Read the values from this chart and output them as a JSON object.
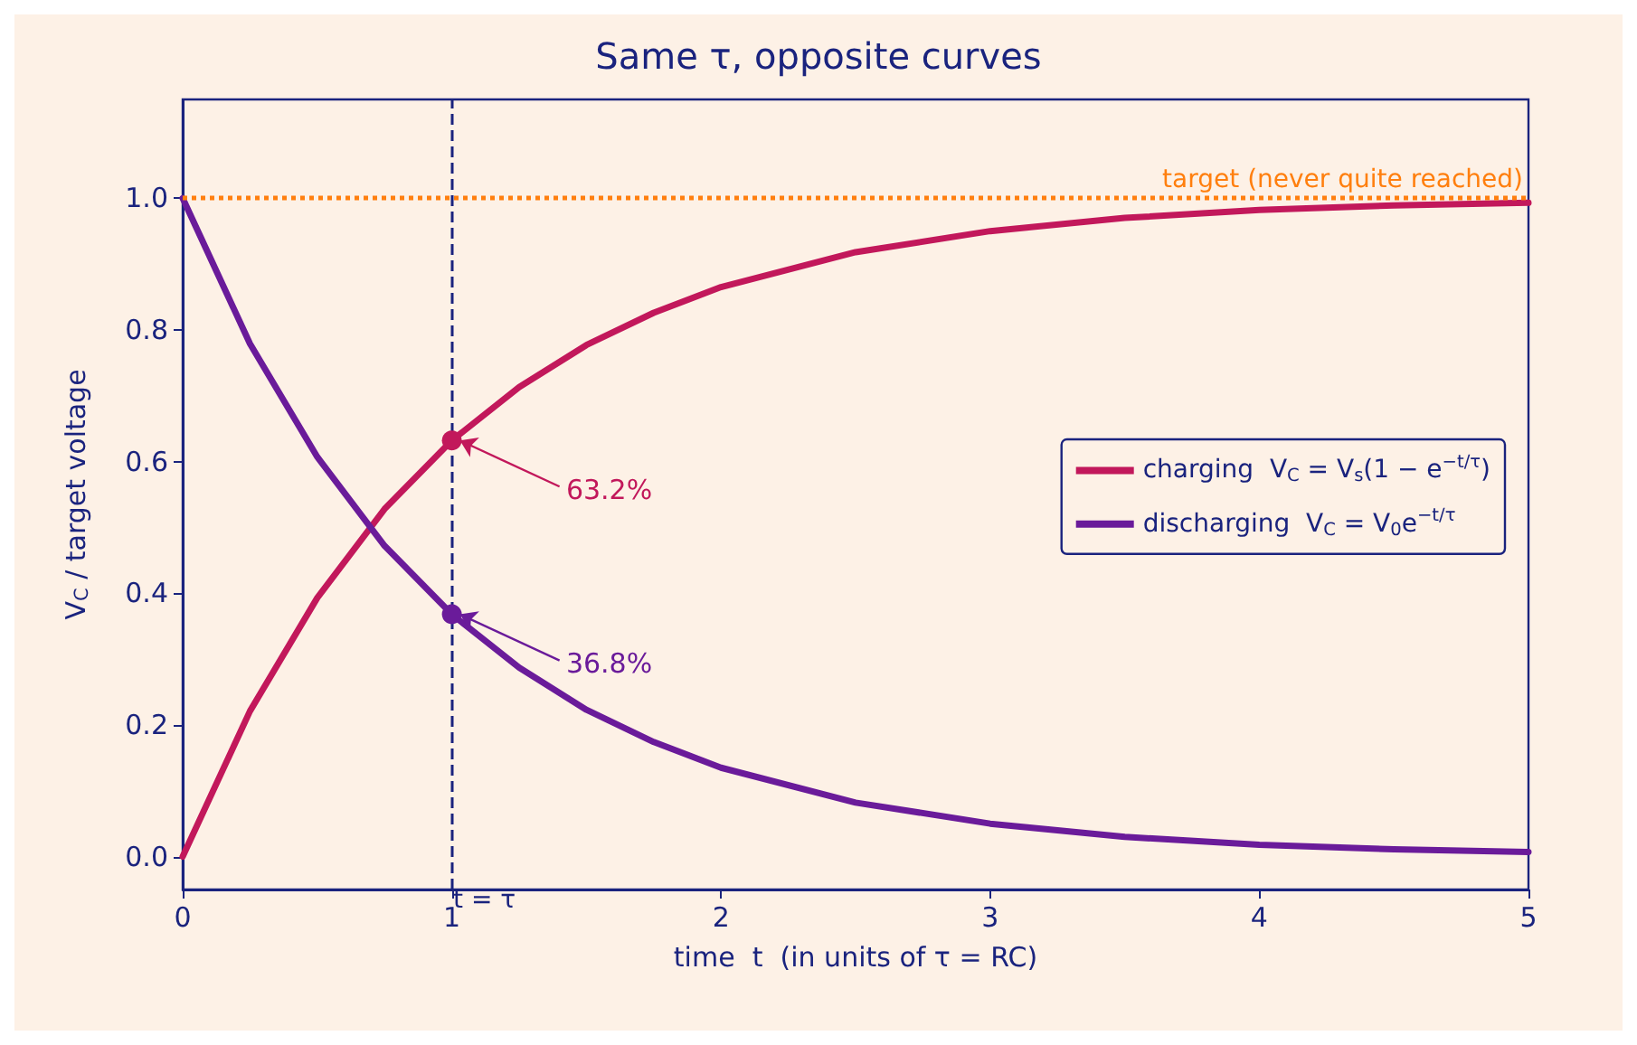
{
  "chart_data": {
    "type": "line",
    "title": "Same τ, opposite curves",
    "xlabel": "time  t  (in units of τ = RC)",
    "ylabel": "V$_{C}$ / target voltage",
    "x": [
      0,
      0.25,
      0.5,
      0.75,
      1,
      1.25,
      1.5,
      1.75,
      2,
      2.5,
      3,
      3.5,
      4,
      4.5,
      5
    ],
    "series": [
      {
        "name": "charging  V$_{C}$ = V$_{s}$(1 − e$^{−t/τ}$)",
        "color": "#c2185b",
        "values": [
          0,
          0.221,
          0.393,
          0.528,
          0.632,
          0.713,
          0.777,
          0.826,
          0.865,
          0.918,
          0.95,
          0.97,
          0.982,
          0.989,
          0.993
        ]
      },
      {
        "name": "discharging  V$_{C}$ = V$_{0}$e$^{−t/τ}$",
        "color": "#6a1b9a",
        "values": [
          1,
          0.779,
          0.607,
          0.472,
          0.368,
          0.287,
          0.223,
          0.174,
          0.135,
          0.082,
          0.05,
          0.03,
          0.018,
          0.011,
          0.007
        ]
      }
    ],
    "annotations": [
      {
        "text": "63.2%",
        "x": 1,
        "y": 0.632
      },
      {
        "text": "36.8%",
        "x": 1,
        "y": 0.368
      }
    ],
    "ref_lines": [
      {
        "axis": "y",
        "value": 1,
        "label": "target (never quite reached)",
        "color": "#ff7f0e",
        "line_style": "dotted"
      },
      {
        "axis": "x",
        "value": 1,
        "label": "t = τ",
        "color": "#1a237e",
        "line_style": "dashed"
      }
    ],
    "xlim": [
      0,
      5
    ],
    "xticks": [
      0,
      1,
      2,
      3,
      4,
      5
    ],
    "ylim": [
      -0.05,
      1.15
    ],
    "yticks": [
      {
        "value": 0,
        "label": "0.0"
      },
      {
        "value": 0.2,
        "label": "0.2"
      },
      {
        "value": 0.4,
        "label": "0.4"
      },
      {
        "value": 0.6,
        "label": "0.6"
      },
      {
        "value": 0.8,
        "label": "0.8"
      },
      {
        "value": 1,
        "label": "1.0"
      }
    ],
    "legend": "right",
    "grid": false,
    "marker": "none",
    "line_style": "solid"
  }
}
